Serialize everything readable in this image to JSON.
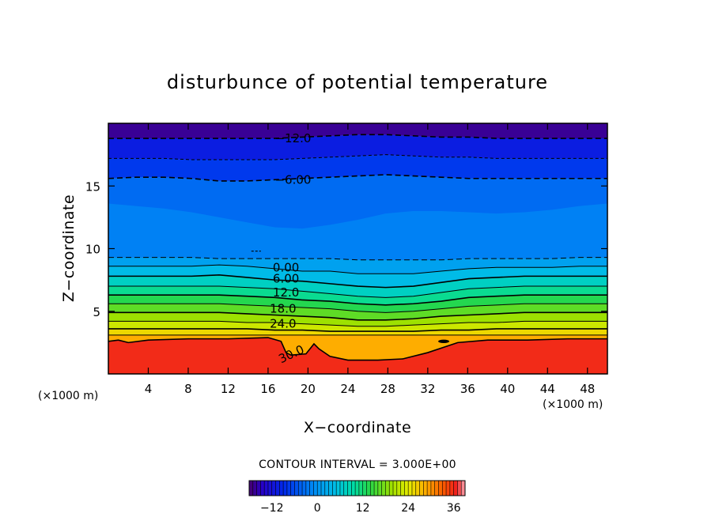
{
  "chart_data": {
    "type": "heatmap",
    "title": "disturbunce of potential temperature",
    "xlabel": "X−coordinate",
    "ylabel": "Z−coordinate",
    "x_unit_left": "(×1000 m)",
    "x_unit_right": "(×1000 m)",
    "xlim": [
      0,
      50
    ],
    "ylim": [
      0,
      20
    ],
    "x_ticks": [
      4,
      8,
      12,
      16,
      20,
      24,
      28,
      32,
      36,
      40,
      44,
      48
    ],
    "y_ticks": [
      5,
      10,
      15
    ],
    "contour_interval_text": "CONTOUR INTERVAL = 3.000E+00",
    "contour_interval": 3.0,
    "value_range": [
      -18,
      39
    ],
    "colorbar_ticks": [
      -12,
      0,
      12,
      24,
      36
    ],
    "colorbar_tick_labels": [
      "−12",
      "0",
      "12",
      "24",
      "36"
    ],
    "contour_labels": [
      {
        "text": "−12.0",
        "x": 18.5,
        "z": 18.8
      },
      {
        "text": "−6.00",
        "x": 18.5,
        "z": 15.5
      },
      {
        "text": "0.00",
        "x": 17.8,
        "z": 8.5
      },
      {
        "text": "6.00",
        "x": 17.8,
        "z": 7.6
      },
      {
        "text": "12.0",
        "x": 17.8,
        "z": 6.5
      },
      {
        "text": "18.0",
        "x": 17.5,
        "z": 5.2
      },
      {
        "text": "24.0",
        "x": 17.5,
        "z": 4.0
      },
      {
        "text": "30.0",
        "x": 18.5,
        "z": 1.6
      }
    ],
    "levels": [
      {
        "value": -12,
        "dashed": true,
        "z": [
          18.8,
          18.8,
          18.8,
          18.8,
          18.8,
          18.8,
          18.8,
          18.9,
          19.0,
          19.1,
          19.1,
          19.0,
          18.9,
          18.9,
          18.8,
          18.8,
          18.8,
          18.8,
          18.8
        ]
      },
      {
        "value": -9,
        "dashed": true,
        "z": [
          17.2,
          17.2,
          17.2,
          17.1,
          17.1,
          17.1,
          17.1,
          17.2,
          17.3,
          17.4,
          17.5,
          17.4,
          17.3,
          17.3,
          17.2,
          17.2,
          17.2,
          17.2,
          17.2
        ]
      },
      {
        "value": -6,
        "dashed": true,
        "z": [
          15.6,
          15.7,
          15.7,
          15.6,
          15.4,
          15.4,
          15.5,
          15.6,
          15.7,
          15.8,
          15.9,
          15.8,
          15.7,
          15.6,
          15.6,
          15.6,
          15.6,
          15.6,
          15.6
        ]
      },
      {
        "value": 0,
        "dashed": true,
        "z": [
          9.3,
          9.3,
          9.3,
          9.3,
          9.2,
          9.2,
          9.2,
          9.2,
          9.2,
          9.1,
          9.1,
          9.1,
          9.1,
          9.2,
          9.2,
          9.2,
          9.2,
          9.3,
          9.3
        ]
      },
      {
        "value": 3,
        "dashed": false,
        "z": [
          8.6,
          8.6,
          8.6,
          8.6,
          8.7,
          8.6,
          8.4,
          8.2,
          8.2,
          8.0,
          8.0,
          8.0,
          8.2,
          8.4,
          8.5,
          8.5,
          8.5,
          8.6,
          8.6
        ]
      },
      {
        "value": 6,
        "dashed": false,
        "z": [
          7.8,
          7.8,
          7.8,
          7.8,
          7.9,
          7.7,
          7.5,
          7.4,
          7.2,
          7.0,
          6.9,
          7.0,
          7.3,
          7.6,
          7.7,
          7.8,
          7.8,
          7.8,
          7.8
        ]
      },
      {
        "value": 9,
        "dashed": false,
        "z": [
          7.0,
          7.0,
          7.0,
          7.0,
          7.0,
          6.9,
          6.8,
          6.6,
          6.4,
          6.2,
          6.1,
          6.2,
          6.5,
          6.8,
          6.9,
          7.0,
          7.0,
          7.0,
          7.0
        ]
      },
      {
        "value": 12,
        "dashed": false,
        "z": [
          6.3,
          6.3,
          6.3,
          6.3,
          6.3,
          6.2,
          6.1,
          5.9,
          5.8,
          5.6,
          5.5,
          5.6,
          5.8,
          6.1,
          6.2,
          6.3,
          6.3,
          6.3,
          6.3
        ]
      },
      {
        "value": 15,
        "dashed": false,
        "z": [
          5.6,
          5.6,
          5.6,
          5.6,
          5.6,
          5.5,
          5.4,
          5.3,
          5.2,
          5.0,
          4.9,
          5.0,
          5.2,
          5.4,
          5.5,
          5.6,
          5.6,
          5.6,
          5.6
        ]
      },
      {
        "value": 18,
        "dashed": false,
        "z": [
          4.9,
          4.9,
          4.9,
          4.9,
          4.9,
          4.8,
          4.7,
          4.6,
          4.5,
          4.3,
          4.3,
          4.4,
          4.6,
          4.7,
          4.8,
          4.9,
          4.9,
          4.9,
          4.9
        ]
      },
      {
        "value": 21,
        "dashed": false,
        "z": [
          4.2,
          4.2,
          4.2,
          4.2,
          4.2,
          4.1,
          4.1,
          4.0,
          3.9,
          3.8,
          3.8,
          3.9,
          4.0,
          4.1,
          4.1,
          4.2,
          4.2,
          4.2,
          4.2
        ]
      },
      {
        "value": 24,
        "dashed": false,
        "z": [
          3.6,
          3.6,
          3.6,
          3.6,
          3.6,
          3.6,
          3.5,
          3.5,
          3.4,
          3.4,
          3.4,
          3.4,
          3.5,
          3.5,
          3.6,
          3.6,
          3.6,
          3.6,
          3.6
        ]
      },
      {
        "value": 27,
        "dashed": false,
        "z": [
          3.1,
          3.1,
          3.1,
          3.1,
          3.1,
          3.1,
          3.1,
          3.1,
          3.1,
          3.1,
          3.1,
          3.1,
          3.1,
          3.1,
          3.1,
          3.1,
          3.1,
          3.1,
          3.1
        ]
      }
    ],
    "contour_30": {
      "value": 30,
      "points": [
        [
          0,
          2.6
        ],
        [
          1,
          2.7
        ],
        [
          2,
          2.5
        ],
        [
          4,
          2.7
        ],
        [
          8,
          2.8
        ],
        [
          12,
          2.8
        ],
        [
          16,
          2.9
        ],
        [
          17.3,
          2.6
        ],
        [
          17.8,
          1.7
        ],
        [
          18.3,
          1.5
        ],
        [
          19.8,
          1.6
        ],
        [
          20.6,
          2.4
        ],
        [
          21.1,
          2.0
        ],
        [
          22.2,
          1.4
        ],
        [
          24.0,
          1.1
        ],
        [
          27,
          1.1
        ],
        [
          29.5,
          1.2
        ],
        [
          32.0,
          1.7
        ],
        [
          35.0,
          2.5
        ],
        [
          38,
          2.7
        ],
        [
          42,
          2.7
        ],
        [
          46,
          2.8
        ],
        [
          50,
          2.8
        ]
      ]
    },
    "small_feature_30": {
      "value": 30,
      "x": 33.6,
      "z": 2.6
    },
    "small_feature_0": {
      "value": 0,
      "x": 14.8,
      "z": 9.8
    }
  }
}
